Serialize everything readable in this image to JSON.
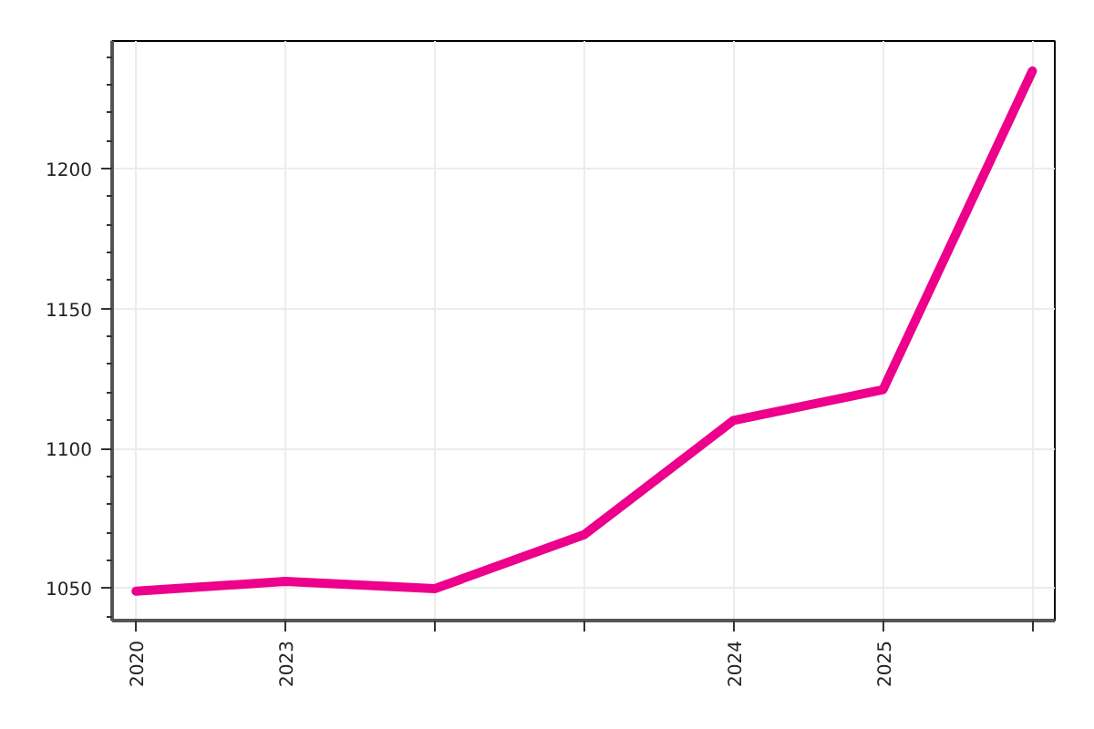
{
  "chart_data": {
    "type": "line",
    "categories": [
      "2020",
      "2023",
      null,
      null,
      "2024",
      "2025",
      null
    ],
    "series": [
      {
        "color": "#ec008c",
        "values": [
          1048.9,
          1052.4,
          1049.8,
          1069.1,
          1110,
          1121,
          1235
        ]
      }
    ],
    "ylim": [
      1038.4,
      1245.7
    ],
    "yticks": [
      1050,
      1100,
      1150,
      1200
    ],
    "grid": true,
    "marker": "none",
    "line_style": "solid"
  }
}
